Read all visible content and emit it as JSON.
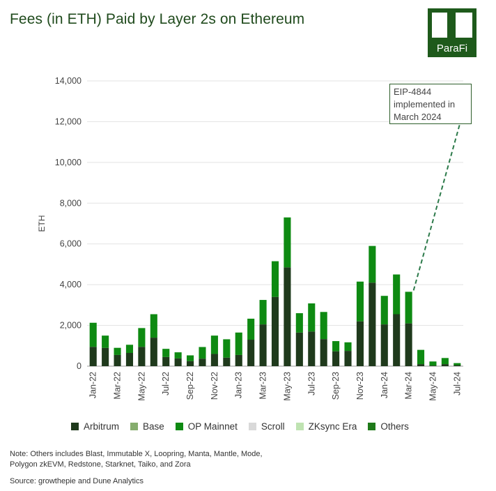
{
  "title": "Fees (in ETH) Paid by Layer 2s on Ethereum",
  "logo": {
    "text": "ParaFi"
  },
  "note_line1": "Note: Others includes Blast, Immutable X, Loopring, Manta, Mantle, Mode,",
  "note_line2": "Polygon zkEVM, Redstone, Starknet, Taiko, and Zora",
  "source": "Source: growthepie and Dune Analytics",
  "colors": {
    "Arbitrum": "#1f3a1c",
    "Base": "#86ad6e",
    "OP Mainnet": "#0e8a12",
    "Scroll": "#d9d9d9",
    "ZKsync Era": "#bfe3b2",
    "Others": "#1f7a1a"
  },
  "chart_data": {
    "type": "bar",
    "stacked": true,
    "title": "Fees (in ETH) Paid by Layer 2s on Ethereum",
    "xlabel": "",
    "ylabel": "ETH",
    "ylim": [
      0,
      14000
    ],
    "yticks": [
      "0",
      "2,000",
      "4,000",
      "6,000",
      "8,000",
      "10,000",
      "12,000",
      "14,000"
    ],
    "categories": [
      "Jan-22",
      "Feb-22",
      "Mar-22",
      "Apr-22",
      "May-22",
      "Jun-22",
      "Jul-22",
      "Aug-22",
      "Sep-22",
      "Oct-22",
      "Nov-22",
      "Dec-22",
      "Jan-23",
      "Feb-23",
      "Mar-23",
      "Apr-23",
      "May-23",
      "Jun-23",
      "Jul-23",
      "Aug-23",
      "Sep-23",
      "Oct-23",
      "Nov-23",
      "Dec-23",
      "Jan-24",
      "Feb-24",
      "Mar-24",
      "Apr-24",
      "May-24",
      "Jun-24",
      "Jul-24"
    ],
    "xtick_labels": [
      "Jan-22",
      "Mar-22",
      "May-22",
      "Jul-22",
      "Sep-22",
      "Nov-22",
      "Jan-23",
      "Mar-23",
      "May-23",
      "Jul-23",
      "Sep-23",
      "Nov-23",
      "Jan-24",
      "Mar-24",
      "May-24",
      "Jul-24"
    ],
    "legend_position": "bottom",
    "series": [
      {
        "name": "Arbitrum",
        "values": [
          950,
          900,
          550,
          650,
          950,
          1400,
          450,
          380,
          250,
          370,
          600,
          420,
          550,
          1300,
          2050,
          3400,
          4850,
          1650,
          1700,
          1330,
          730,
          750,
          2200,
          4100,
          2050,
          2550,
          2100,
          100,
          30,
          100,
          50
        ]
      },
      {
        "name": "Base",
        "values": [
          0,
          0,
          0,
          0,
          0,
          0,
          0,
          0,
          0,
          0,
          0,
          0,
          0,
          0,
          0,
          0,
          0,
          0,
          0,
          0,
          0,
          0,
          0,
          0,
          0,
          0,
          0,
          0,
          0,
          0,
          0
        ]
      },
      {
        "name": "OP Mainnet",
        "values": [
          1180,
          600,
          350,
          400,
          920,
          1150,
          400,
          300,
          280,
          570,
          900,
          900,
          1100,
          1030,
          1200,
          1750,
          2450,
          950,
          1380,
          1330,
          500,
          420,
          1950,
          1800,
          1400,
          1950,
          1550,
          700,
          200,
          300,
          100
        ]
      },
      {
        "name": "Scroll",
        "values": [
          0,
          0,
          0,
          0,
          0,
          0,
          0,
          0,
          0,
          0,
          0,
          0,
          0,
          0,
          0,
          0,
          0,
          0,
          0,
          0,
          0,
          0,
          0,
          0,
          0,
          0,
          0,
          0,
          0,
          0,
          0
        ]
      },
      {
        "name": "ZKsync Era",
        "values": [
          0,
          0,
          0,
          0,
          0,
          0,
          0,
          0,
          0,
          0,
          0,
          0,
          0,
          0,
          0,
          0,
          0,
          0,
          0,
          0,
          0,
          0,
          0,
          0,
          0,
          0,
          0,
          0,
          0,
          0,
          0
        ]
      },
      {
        "name": "Others",
        "values": [
          0,
          0,
          0,
          0,
          0,
          0,
          0,
          0,
          0,
          0,
          0,
          0,
          0,
          0,
          0,
          0,
          0,
          0,
          0,
          0,
          0,
          0,
          0,
          0,
          0,
          0,
          0,
          0,
          0,
          0,
          0
        ]
      }
    ],
    "annotation": {
      "text_line1": "EIP-4844",
      "text_line2": "implemented in",
      "text_line3": "March 2024",
      "target_category": "Mar-24"
    }
  }
}
